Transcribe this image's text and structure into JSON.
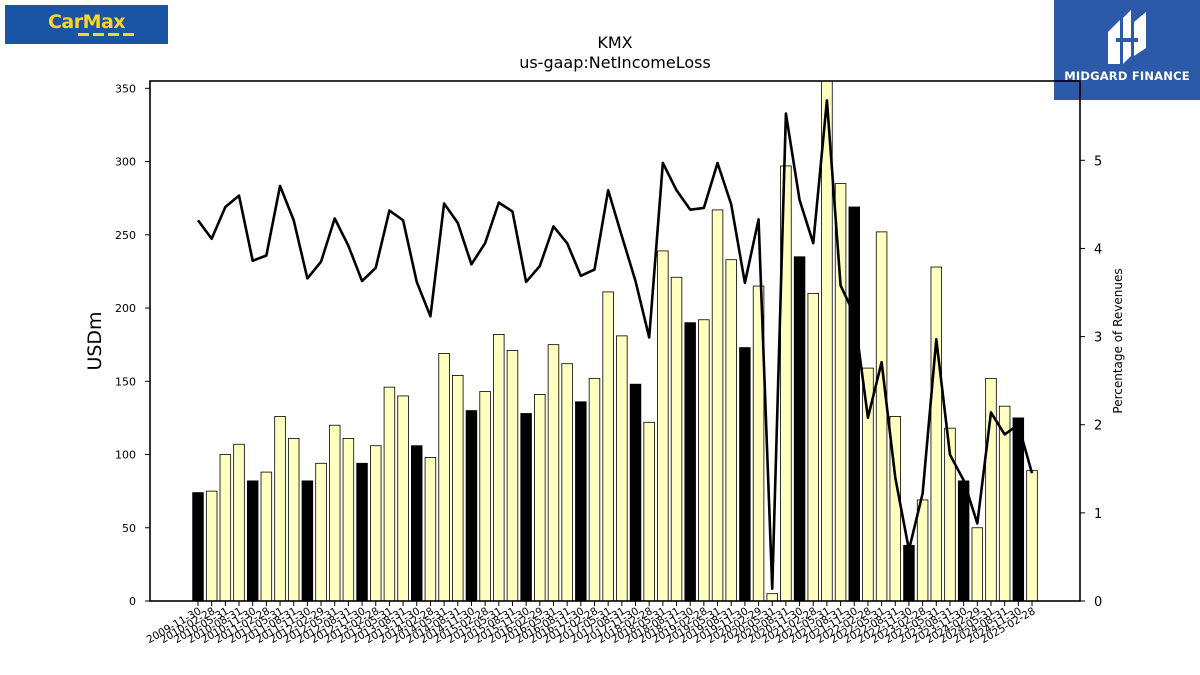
{
  "logos": {
    "left_text": "CarMax",
    "right_text": "MIDGARD FINANCE"
  },
  "colors": {
    "annual_bar": "#000000",
    "quarter_bar": "#ffffc0",
    "line": "#000000",
    "left_logo_bg": "#1a54a5",
    "left_logo_text": "#ffd520",
    "right_logo_bg": "#2c5aa8"
  },
  "chart_data": {
    "type": "bar",
    "title": "KMX",
    "subtitle": "us-gaap:NetIncomeLoss",
    "ylabel": "USDm",
    "y2label": "Percentage of Revenues",
    "ylim": [
      0,
      355
    ],
    "y2lim": [
      0,
      5.9
    ],
    "yticks": [
      0,
      50,
      100,
      150,
      200,
      250,
      300,
      350
    ],
    "y2ticks": [
      0,
      1,
      2,
      3,
      4,
      5
    ],
    "grid": false,
    "categories": [
      "2009-11-30",
      "2010-02-28",
      "2010-05-31",
      "2010-08-31",
      "2010-11-30",
      "2011-02-28",
      "2011-05-31",
      "2011-08-31",
      "2011-11-30",
      "2012-02-29",
      "2012-05-31",
      "2012-08-31",
      "2012-11-30",
      "2013-02-28",
      "2013-05-31",
      "2013-08-31",
      "2013-11-30",
      "2014-02-28",
      "2014-05-31",
      "2014-08-31",
      "2014-11-30",
      "2015-02-28",
      "2015-05-31",
      "2015-08-31",
      "2015-11-30",
      "2016-02-29",
      "2016-05-31",
      "2016-08-31",
      "2016-11-30",
      "2017-02-28",
      "2017-05-31",
      "2017-08-31",
      "2017-11-30",
      "2018-02-28",
      "2018-05-31",
      "2018-08-31",
      "2018-11-30",
      "2019-02-28",
      "2019-05-31",
      "2019-08-31",
      "2019-11-30",
      "2020-02-29",
      "2020-05-31",
      "2020-08-31",
      "2020-11-30",
      "2021-02-28",
      "2021-05-31",
      "2021-08-31",
      "2021-11-30",
      "2022-02-28",
      "2022-05-31",
      "2022-08-31",
      "2022-11-30",
      "2023-02-28",
      "2023-05-31",
      "2023-08-31",
      "2023-11-30",
      "2024-02-29",
      "2024-05-31",
      "2024-08-31",
      "2024-11-30",
      "2025-02-28"
    ],
    "series": [
      {
        "type": "bar",
        "axis": "left",
        "values": [
          74,
          75,
          100,
          107,
          82,
          88,
          126,
          111,
          82,
          94,
          120,
          111,
          94,
          106,
          146,
          140,
          106,
          98,
          169,
          154,
          130,
          143,
          182,
          171,
          128,
          141,
          175,
          162,
          136,
          152,
          211,
          181,
          148,
          122,
          239,
          221,
          190,
          192,
          267,
          233,
          173,
          215,
          5,
          297,
          235,
          210,
          355,
          285,
          269,
          159,
          252,
          126,
          38,
          69,
          228,
          118,
          82,
          50,
          152,
          133,
          125,
          89
        ],
        "annual": [
          true,
          false,
          false,
          false,
          true,
          false,
          false,
          false,
          true,
          false,
          false,
          false,
          true,
          false,
          false,
          false,
          true,
          false,
          false,
          false,
          true,
          false,
          false,
          false,
          true,
          false,
          false,
          false,
          true,
          false,
          false,
          false,
          true,
          false,
          false,
          false,
          true,
          false,
          false,
          false,
          true,
          false,
          false,
          false,
          true,
          false,
          false,
          false,
          true,
          false,
          false,
          false,
          true,
          false,
          false,
          false,
          true,
          false,
          false,
          false,
          true,
          false
        ]
      },
      {
        "type": "line",
        "axis": "right",
        "values": [
          4.32,
          4.11,
          4.47,
          4.6,
          3.86,
          3.92,
          4.71,
          4.32,
          3.66,
          3.85,
          4.34,
          4.03,
          3.63,
          3.78,
          4.43,
          4.32,
          3.62,
          3.23,
          4.51,
          4.29,
          3.82,
          4.06,
          4.52,
          4.42,
          3.62,
          3.8,
          4.25,
          4.06,
          3.69,
          3.76,
          4.66,
          4.14,
          3.63,
          2.99,
          4.97,
          4.66,
          4.44,
          4.46,
          4.97,
          4.5,
          3.61,
          4.33,
          0.14,
          5.53,
          4.55,
          4.06,
          5.68,
          3.58,
          3.25,
          2.08,
          2.71,
          1.4,
          0.58,
          1.22,
          2.97,
          1.66,
          1.37,
          0.88,
          2.14,
          1.89,
          2.0,
          1.45
        ]
      }
    ]
  }
}
